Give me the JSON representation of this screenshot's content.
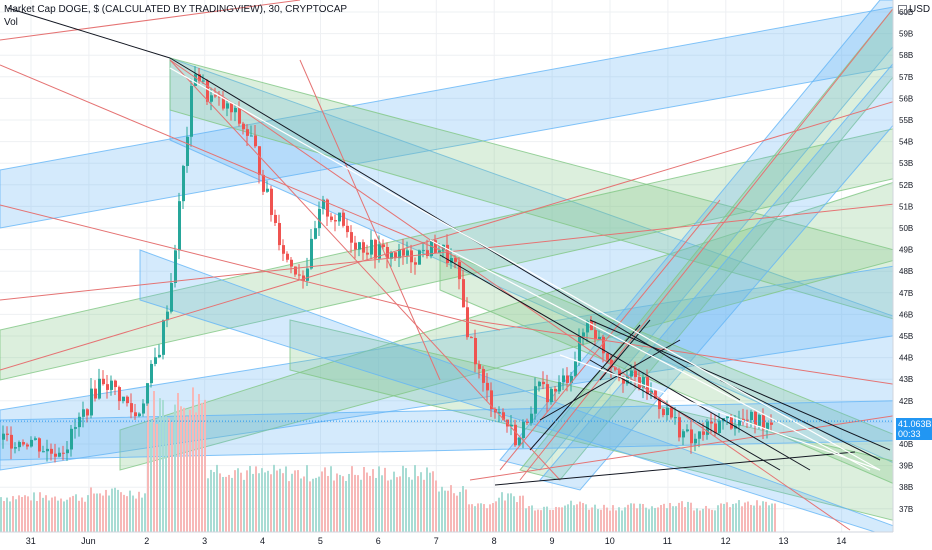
{
  "header": {
    "title": "Market Cap DOGE, $ (CALCULATED BY TRADINGVIEW), 30, CRYPTOCAP",
    "volume_label": "Vol",
    "currency": "USD"
  },
  "last_price": {
    "value": "41.063B",
    "countdown": "00:33",
    "color": "#2196f3"
  },
  "colors": {
    "up_candle": "#26a69a",
    "down_candle": "#ef5350",
    "volume_up": "#a8dcd4",
    "volume_down": "#f7b8b7",
    "fib_blue": "#64b5f6",
    "fib_green": "#81c784",
    "trend_red": "#e57373",
    "grid": "#eef0f3"
  },
  "chart_data": {
    "type": "candlestick",
    "x_tick_labels": [
      "31",
      "Jun",
      "2",
      "3",
      "4",
      "5",
      "6",
      "7",
      "8",
      "9",
      "10",
      "11",
      "12",
      "13",
      "14"
    ],
    "y_tick_labels": [
      "60B",
      "59B",
      "58B",
      "57B",
      "56B",
      "55B",
      "54B",
      "53B",
      "52B",
      "51B",
      "50B",
      "49B",
      "48B",
      "47B",
      "46B",
      "45B",
      "44B",
      "43B",
      "42B",
      "41B",
      "40B",
      "39B",
      "38B",
      "37B"
    ],
    "ylim": [
      37,
      60
    ],
    "price_path": [
      [
        0,
        40.2
      ],
      [
        0.3,
        39.6
      ],
      [
        0.6,
        40.0
      ],
      [
        0.9,
        41.5
      ],
      [
        1.2,
        43.1
      ],
      [
        1.5,
        42.3
      ],
      [
        1.8,
        41.2
      ],
      [
        2.2,
        44.5
      ],
      [
        2.4,
        47.5
      ],
      [
        2.6,
        52.5
      ],
      [
        2.8,
        57.5
      ],
      [
        3.0,
        56.2
      ],
      [
        3.2,
        55.8
      ],
      [
        3.5,
        55.2
      ],
      [
        3.8,
        54.0
      ],
      [
        4.1,
        51.0
      ],
      [
        4.4,
        48.5
      ],
      [
        4.7,
        47.8
      ],
      [
        5.0,
        51.0
      ],
      [
        5.3,
        50.3
      ],
      [
        5.6,
        49.3
      ],
      [
        6.0,
        48.9
      ],
      [
        6.5,
        48.6
      ],
      [
        7.0,
        49.2
      ],
      [
        7.3,
        48.2
      ],
      [
        7.5,
        45.5
      ],
      [
        7.8,
        42.5
      ],
      [
        8.1,
        41.3
      ],
      [
        8.4,
        40.1
      ],
      [
        8.7,
        42.5
      ],
      [
        9.0,
        42.3
      ],
      [
        9.3,
        43.4
      ],
      [
        9.6,
        45.8
      ],
      [
        9.9,
        44.2
      ],
      [
        10.2,
        43.2
      ],
      [
        10.5,
        42.8
      ],
      [
        10.8,
        42.0
      ],
      [
        11.1,
        41.0
      ],
      [
        11.4,
        40.0
      ],
      [
        11.7,
        40.8
      ],
      [
        12.0,
        41.06
      ]
    ],
    "volume_profile": [
      [
        0,
        0.25
      ],
      [
        1.0,
        0.28
      ],
      [
        2.0,
        0.9
      ],
      [
        2.6,
        0.95
      ],
      [
        3.0,
        0.45
      ],
      [
        3.6,
        0.42
      ],
      [
        4.2,
        0.42
      ],
      [
        4.8,
        0.42
      ],
      [
        5.4,
        0.42
      ],
      [
        6.0,
        0.42
      ],
      [
        6.5,
        0.42
      ],
      [
        7.0,
        0.3
      ],
      [
        7.5,
        0.2
      ],
      [
        8.0,
        0.25
      ],
      [
        8.5,
        0.18
      ],
      [
        9.0,
        0.2
      ],
      [
        9.6,
        0.18
      ],
      [
        10.2,
        0.18
      ],
      [
        10.8,
        0.2
      ],
      [
        11.4,
        0.18
      ],
      [
        12.0,
        0.2
      ]
    ]
  }
}
